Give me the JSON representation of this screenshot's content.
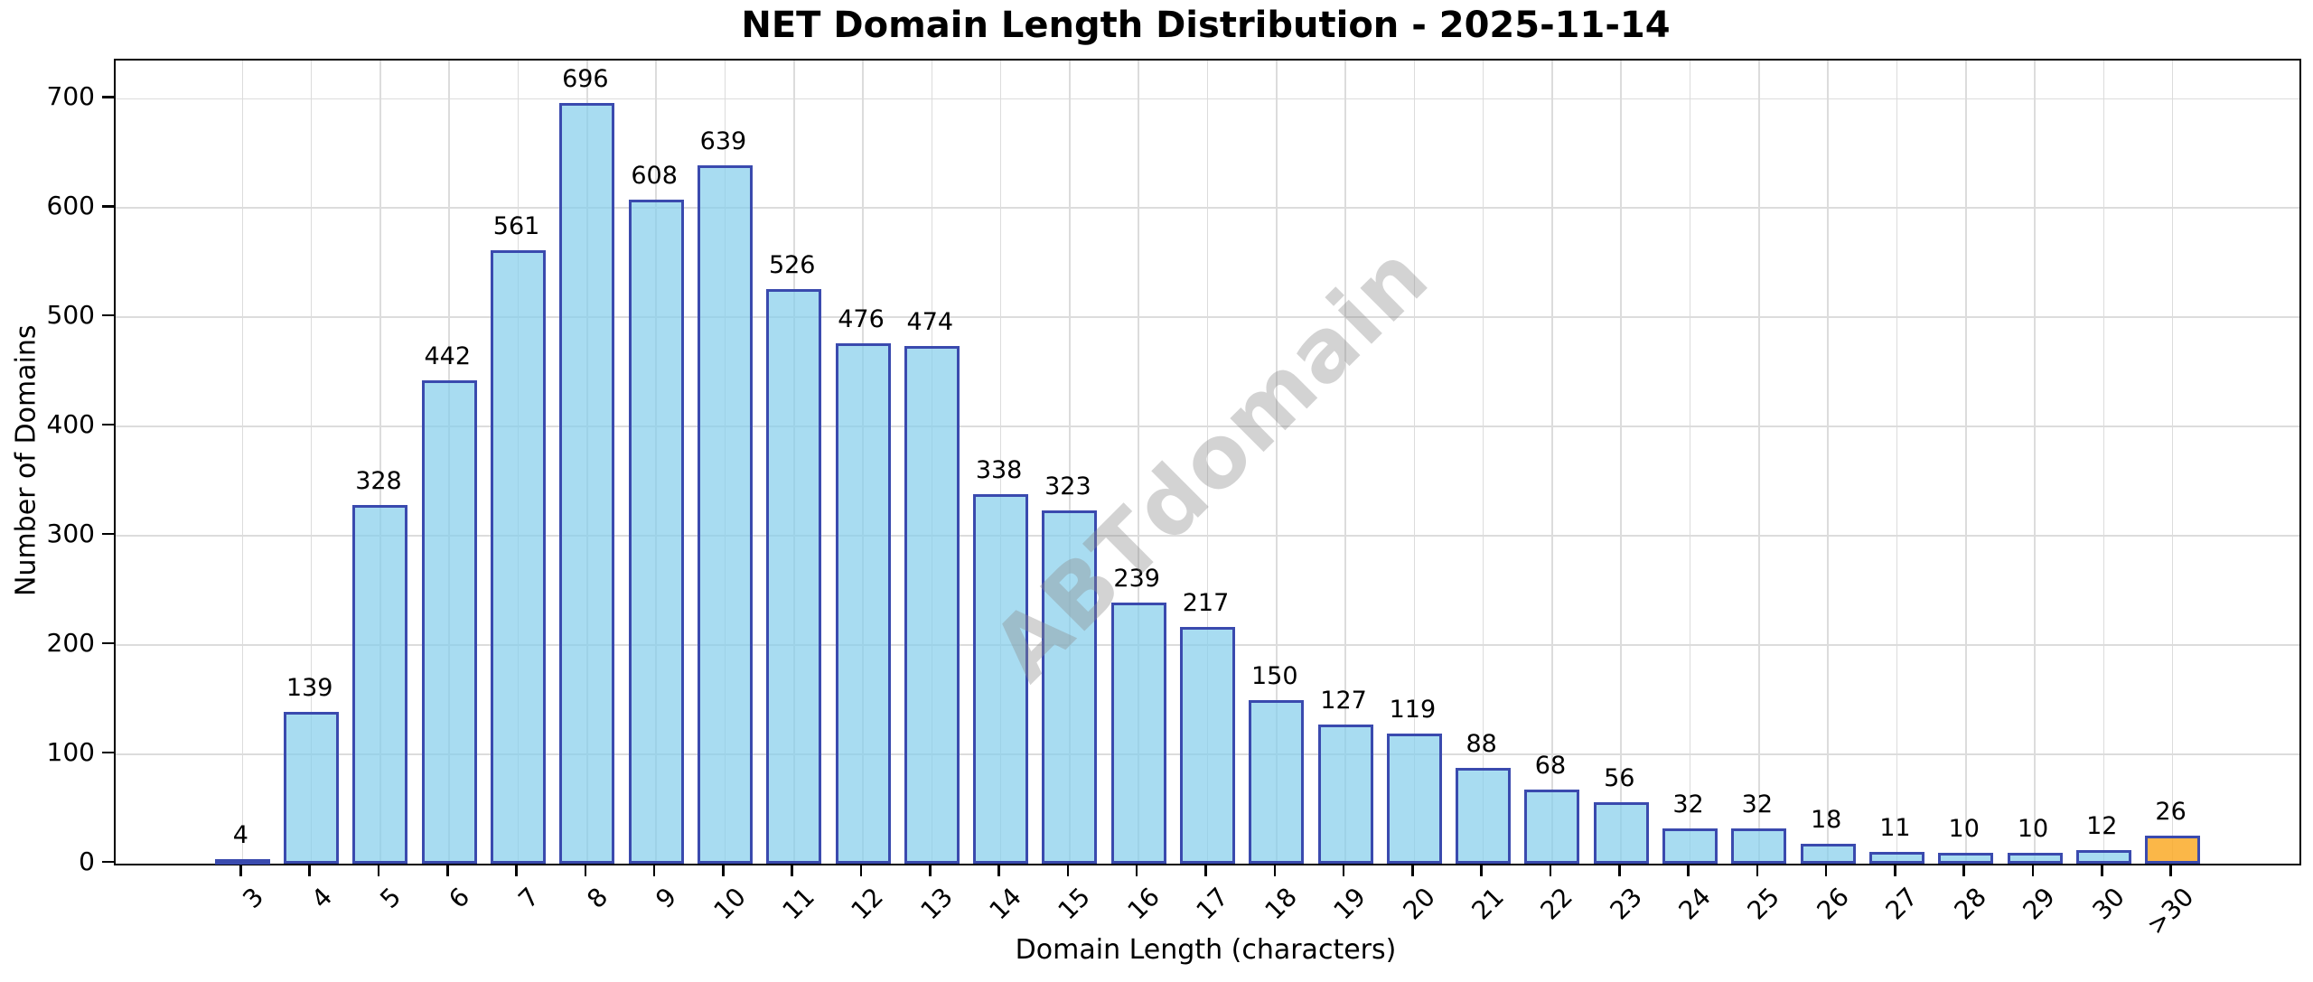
{
  "chart_data": {
    "type": "bar",
    "title": "NET Domain Length Distribution - 2025-11-14",
    "xlabel": "Domain Length (characters)",
    "ylabel": "Number of Domains",
    "watermark": "ABTdomain",
    "categories": [
      "3",
      "4",
      "5",
      "6",
      "7",
      "8",
      "9",
      "10",
      "11",
      "12",
      "13",
      "14",
      "15",
      "16",
      "17",
      "18",
      "19",
      "20",
      "21",
      "22",
      "23",
      "24",
      "25",
      "26",
      "27",
      "28",
      "29",
      "30",
      ">30"
    ],
    "values": [
      4,
      139,
      328,
      442,
      561,
      696,
      608,
      639,
      526,
      476,
      474,
      338,
      323,
      239,
      217,
      150,
      127,
      119,
      88,
      68,
      56,
      32,
      32,
      18,
      11,
      10,
      10,
      12,
      26
    ],
    "highlight_category": ">30",
    "yticks": [
      0,
      100,
      200,
      300,
      400,
      500,
      600,
      700
    ],
    "ylim": [
      0,
      735
    ],
    "grid": true,
    "legend": "none",
    "xtick_rotation_deg": 45,
    "colors": {
      "bar_fill": "rgba(135,206,235,0.72)",
      "bar_edge": "#3a4aae",
      "highlight_fill": "rgba(250,170,40,0.85)",
      "grid_line": "#dcdcdc",
      "spine": "#000000",
      "watermark": "rgba(140,140,140,0.38)"
    }
  }
}
